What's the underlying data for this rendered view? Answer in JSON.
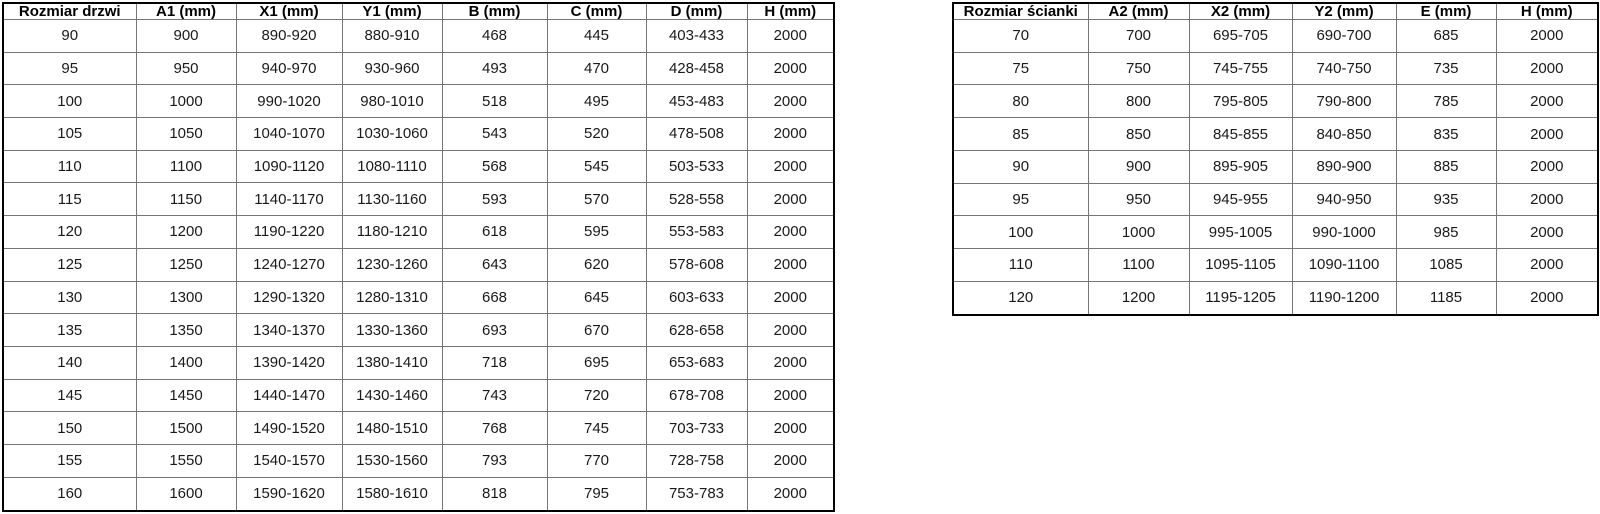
{
  "page": {
    "background_color": "#ffffff",
    "border_outer_color": "#000000",
    "border_inner_color": "#757575",
    "text_color": "#1a1a1a"
  },
  "tables": [
    {
      "name": "door-size-table",
      "headers": [
        "Rozmiar drzwi",
        "A1 (mm)",
        "X1 (mm)",
        "Y1 (mm)",
        "B (mm)",
        "C (mm)",
        "D (mm)",
        "H (mm)"
      ],
      "rows": [
        [
          "90",
          "900",
          "890-920",
          "880-910",
          "468",
          "445",
          "403-433",
          "2000"
        ],
        [
          "95",
          "950",
          "940-970",
          "930-960",
          "493",
          "470",
          "428-458",
          "2000"
        ],
        [
          "100",
          "1000",
          "990-1020",
          "980-1010",
          "518",
          "495",
          "453-483",
          "2000"
        ],
        [
          "105",
          "1050",
          "1040-1070",
          "1030-1060",
          "543",
          "520",
          "478-508",
          "2000"
        ],
        [
          "110",
          "1100",
          "1090-1120",
          "1080-1110",
          "568",
          "545",
          "503-533",
          "2000"
        ],
        [
          "115",
          "1150",
          "1140-1170",
          "1130-1160",
          "593",
          "570",
          "528-558",
          "2000"
        ],
        [
          "120",
          "1200",
          "1190-1220",
          "1180-1210",
          "618",
          "595",
          "553-583",
          "2000"
        ],
        [
          "125",
          "1250",
          "1240-1270",
          "1230-1260",
          "643",
          "620",
          "578-608",
          "2000"
        ],
        [
          "130",
          "1300",
          "1290-1320",
          "1280-1310",
          "668",
          "645",
          "603-633",
          "2000"
        ],
        [
          "135",
          "1350",
          "1340-1370",
          "1330-1360",
          "693",
          "670",
          "628-658",
          "2000"
        ],
        [
          "140",
          "1400",
          "1390-1420",
          "1380-1410",
          "718",
          "695",
          "653-683",
          "2000"
        ],
        [
          "145",
          "1450",
          "1440-1470",
          "1430-1460",
          "743",
          "720",
          "678-708",
          "2000"
        ],
        [
          "150",
          "1500",
          "1490-1520",
          "1480-1510",
          "768",
          "745",
          "703-733",
          "2000"
        ],
        [
          "155",
          "1550",
          "1540-1570",
          "1530-1560",
          "793",
          "770",
          "728-758",
          "2000"
        ],
        [
          "160",
          "1600",
          "1590-1620",
          "1580-1610",
          "818",
          "795",
          "753-783",
          "2000"
        ]
      ]
    },
    {
      "name": "wall-size-table",
      "headers": [
        "Rozmiar ścianki",
        "A2 (mm)",
        "X2 (mm)",
        "Y2 (mm)",
        "E (mm)",
        "H (mm)"
      ],
      "rows": [
        [
          "70",
          "700",
          "695-705",
          "690-700",
          "685",
          "2000"
        ],
        [
          "75",
          "750",
          "745-755",
          "740-750",
          "735",
          "2000"
        ],
        [
          "80",
          "800",
          "795-805",
          "790-800",
          "785",
          "2000"
        ],
        [
          "85",
          "850",
          "845-855",
          "840-850",
          "835",
          "2000"
        ],
        [
          "90",
          "900",
          "895-905",
          "890-900",
          "885",
          "2000"
        ],
        [
          "95",
          "950",
          "945-955",
          "940-950",
          "935",
          "2000"
        ],
        [
          "100",
          "1000",
          "995-1005",
          "990-1000",
          "985",
          "2000"
        ],
        [
          "110",
          "1100",
          "1095-1105",
          "1090-1100",
          "1085",
          "2000"
        ],
        [
          "120",
          "1200",
          "1195-1205",
          "1190-1200",
          "1185",
          "2000"
        ]
      ]
    }
  ]
}
